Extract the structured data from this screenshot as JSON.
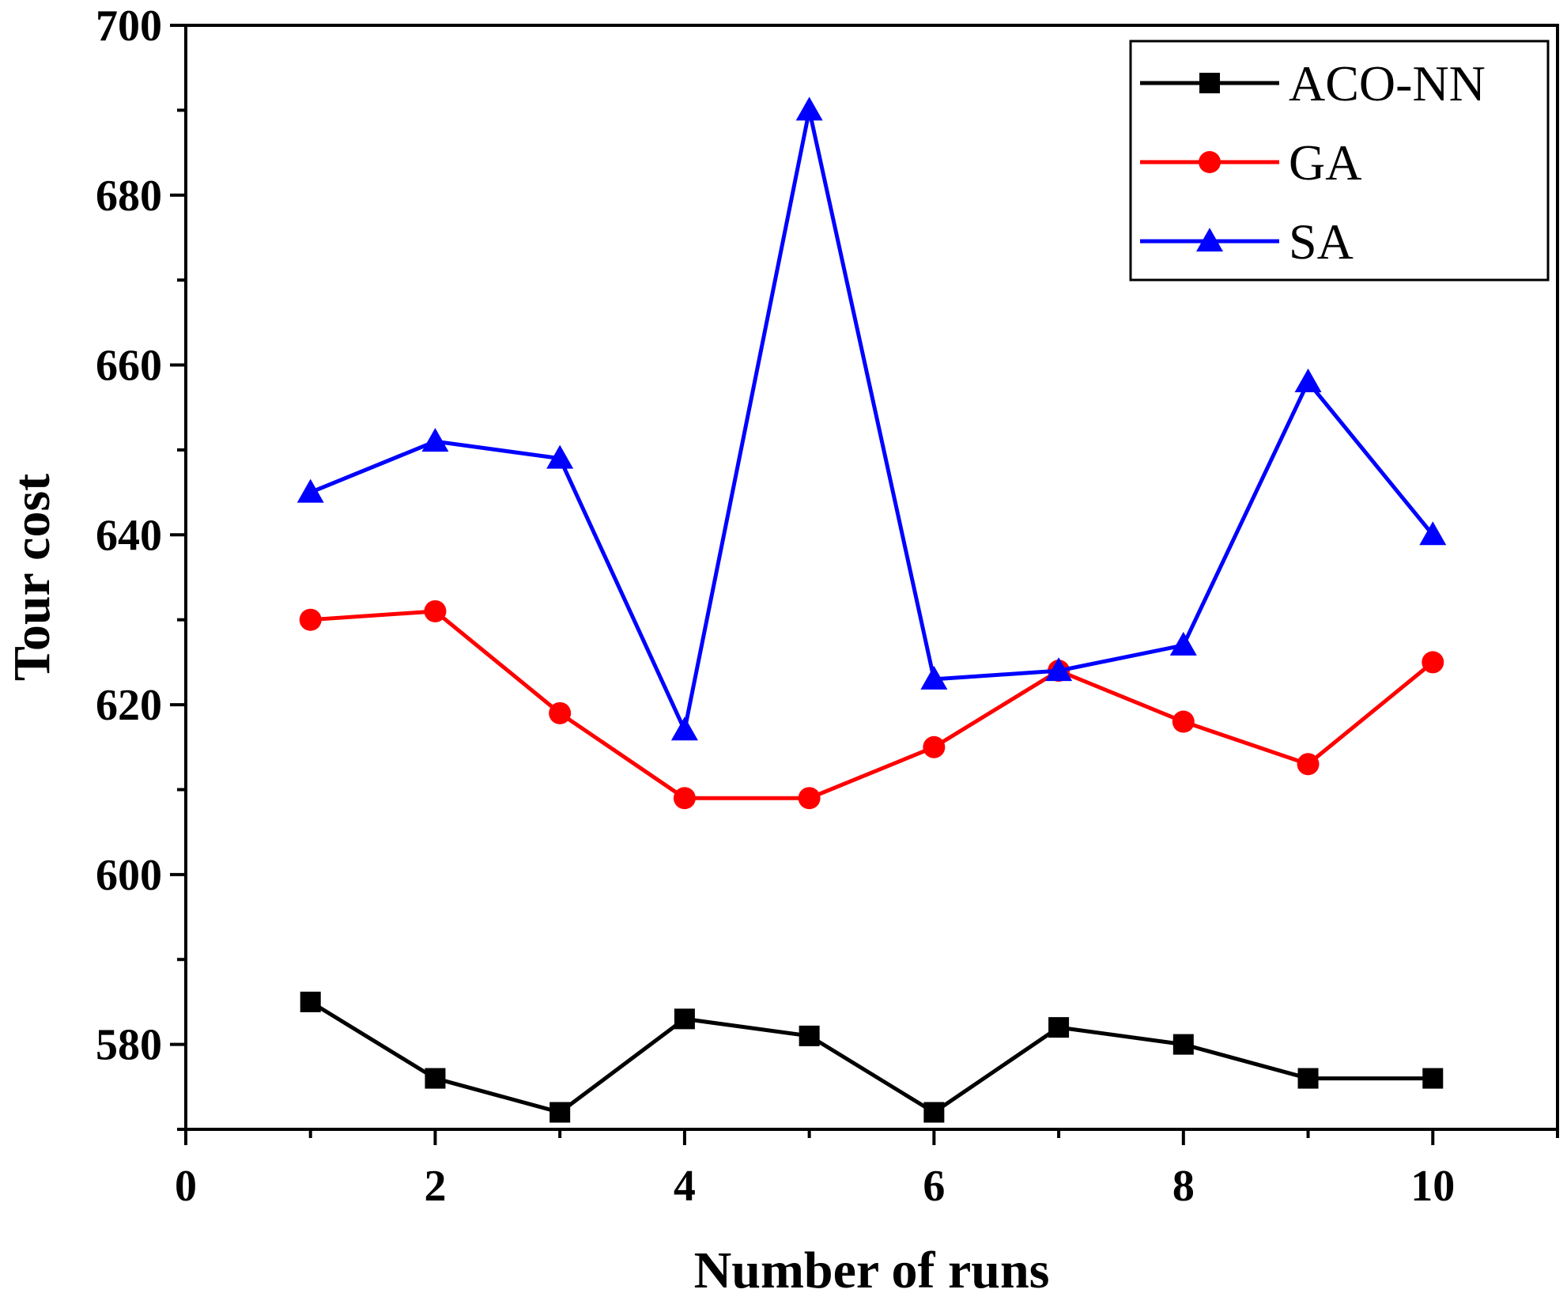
{
  "chart_data": {
    "type": "line",
    "xlabel": "Number of runs",
    "ylabel": "Tour cost",
    "xlim": [
      0,
      11
    ],
    "ylim": [
      570,
      700
    ],
    "xticks": [
      0,
      2,
      4,
      6,
      8,
      10
    ],
    "yticks": [
      580,
      600,
      620,
      640,
      660,
      680,
      700
    ],
    "x": [
      1,
      2,
      3,
      4,
      5,
      6,
      7,
      8,
      9,
      10
    ],
    "legend_position": "top-right",
    "grid": false,
    "series": [
      {
        "name": "ACO-NN",
        "color": "#000000",
        "marker": "square",
        "values": [
          585,
          576,
          572,
          583,
          581,
          572,
          582,
          580,
          576,
          576
        ]
      },
      {
        "name": "GA",
        "color": "#ff0000",
        "marker": "circle",
        "values": [
          630,
          631,
          619,
          609,
          609,
          615,
          624,
          618,
          613,
          625
        ]
      },
      {
        "name": "SA",
        "color": "#0000ff",
        "marker": "triangle",
        "values": [
          645,
          651,
          649,
          617,
          690,
          623,
          624,
          627,
          658,
          640
        ]
      }
    ]
  }
}
